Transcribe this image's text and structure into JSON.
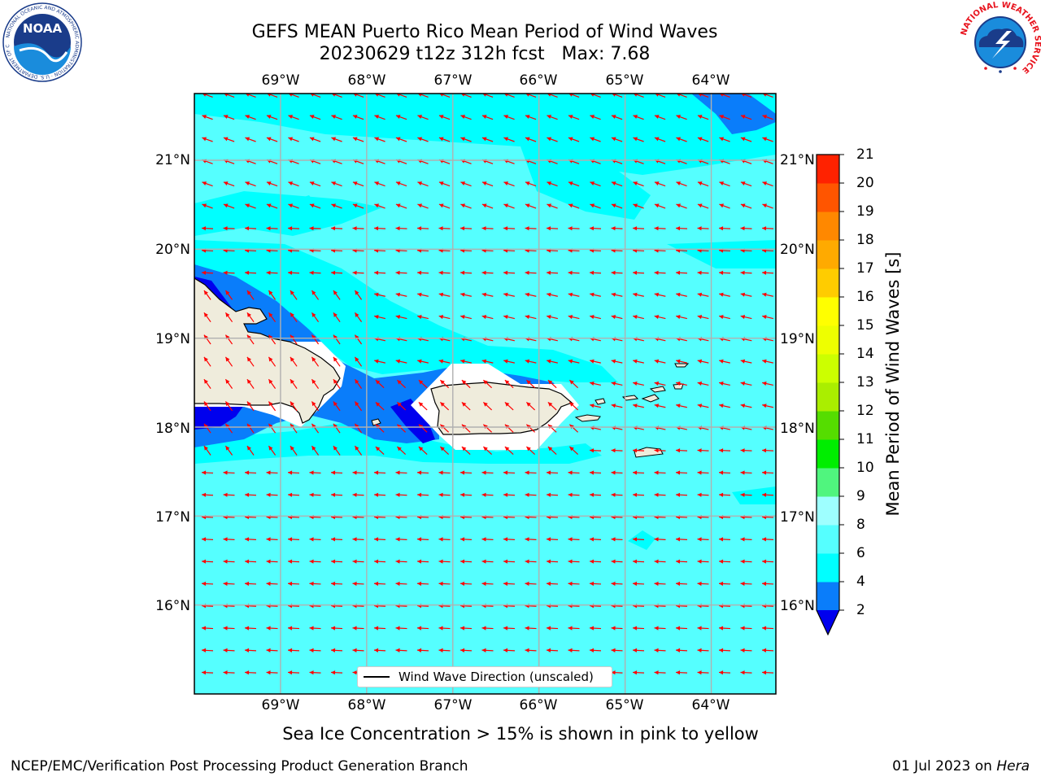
{
  "title": {
    "line1": "GEFS MEAN Puerto Rico Mean Period of Wind Waves",
    "line2": "20230629 t12z 312h fcst   Max: 7.68"
  },
  "logos": {
    "left": "noaa-logo",
    "left_ring_text": "NATIONAL OCEANIC AND ATMOSPHERIC ADMINISTRATION · U.S. DEPARTMENT OF COMMERCE",
    "left_center_text": "NOAA",
    "right": "nws-logo",
    "right_ring_text": "NATIONAL WEATHER SERVICE"
  },
  "map": {
    "lon_labels": [
      "69°W",
      "68°W",
      "67°W",
      "66°W",
      "65°W",
      "64°W"
    ],
    "lat_labels": [
      "21°N",
      "20°N",
      "19°N",
      "18°N",
      "17°N",
      "16°N"
    ],
    "lon_range": [
      -70.0,
      -63.25
    ],
    "lat_range": [
      15.0,
      21.75
    ],
    "grid": true,
    "arrow_direction": "toward west / west-southwest",
    "arrow_color": "#ff0000",
    "land_color": "#efecdc",
    "water_color": "#55ffff"
  },
  "colorbar": {
    "title": "Mean Period of Wind Waves [s]",
    "ticks": [
      "2",
      "4",
      "6",
      "8",
      "9",
      "10",
      "11",
      "12",
      "13",
      "14",
      "15",
      "16",
      "17",
      "18",
      "19",
      "20",
      "21"
    ],
    "colors": [
      "#0a7dfa",
      "#00ffff",
      "#55ffff",
      "#9effff",
      "#50f57e",
      "#00ee00",
      "#55dd00",
      "#aaee00",
      "#ccff00",
      "#eeff00",
      "#ffff00",
      "#ffcc00",
      "#ffaa00",
      "#ff8800",
      "#ff5500",
      "#ff2200"
    ],
    "under_color": "#0000ee"
  },
  "legend": {
    "label": "Wind Wave Direction (unscaled)"
  },
  "sea_ice_note": "Sea Ice Concentration > 15% is shown in pink to yellow",
  "footer": {
    "left": "NCEP/EMC/Verification Post Processing Product Generation Branch",
    "date": "01 Jul 2023 on",
    "machine": "Hera"
  }
}
